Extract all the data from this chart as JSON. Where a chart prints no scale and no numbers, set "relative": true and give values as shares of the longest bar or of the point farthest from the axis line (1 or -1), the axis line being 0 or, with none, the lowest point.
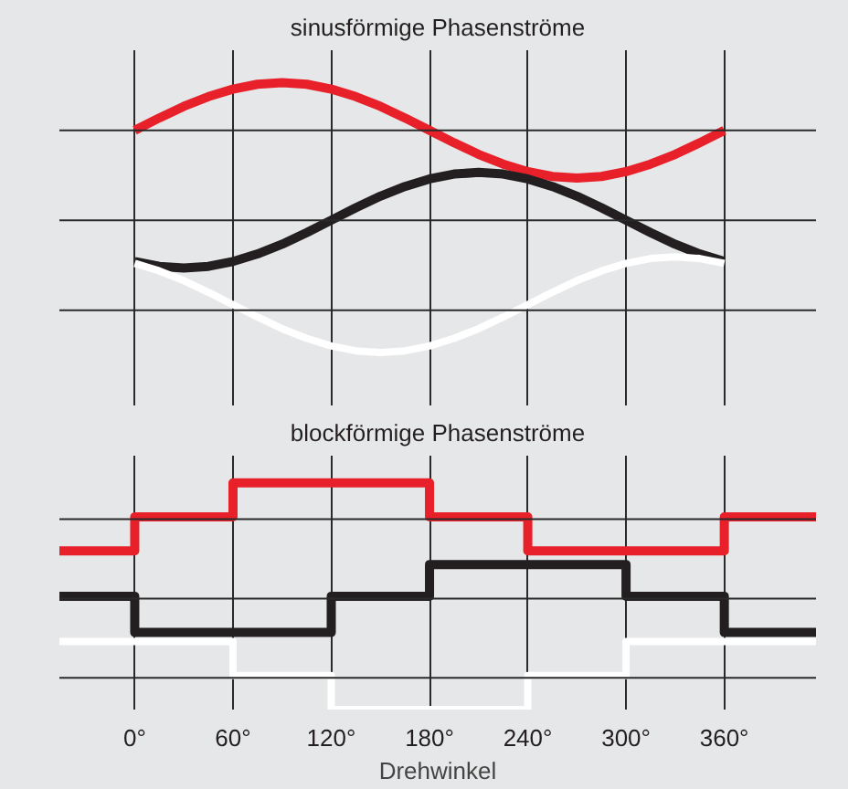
{
  "chart_data": [
    {
      "type": "line",
      "title": "sinusförmige Phasenströme",
      "relative": true,
      "x": [
        0,
        15,
        30,
        45,
        60,
        75,
        90,
        105,
        120,
        135,
        150,
        165,
        180,
        195,
        210,
        225,
        240,
        255,
        270,
        285,
        300,
        315,
        330,
        345,
        360
      ],
      "series": [
        {
          "color": "#e8202a",
          "values": [
            0.823,
            0.869,
            0.912,
            0.948,
            0.976,
            0.994,
            1.0,
            0.994,
            0.976,
            0.948,
            0.912,
            0.869,
            0.823,
            0.777,
            0.734,
            0.698,
            0.67,
            0.652,
            0.646,
            0.652,
            0.67,
            0.698,
            0.734,
            0.777,
            0.823
          ]
        },
        {
          "color": "#231f20",
          "values": [
            0.337,
            0.319,
            0.313,
            0.319,
            0.337,
            0.365,
            0.401,
            0.444,
            0.49,
            0.536,
            0.579,
            0.615,
            0.643,
            0.661,
            0.667,
            0.661,
            0.643,
            0.615,
            0.579,
            0.536,
            0.49,
            0.444,
            0.401,
            0.365,
            0.337
          ]
        },
        {
          "color": "#ffffff",
          "values": [
            0.33,
            0.302,
            0.266,
            0.223,
            0.177,
            0.131,
            0.088,
            0.052,
            0.024,
            0.006,
            0,
            0.006,
            0.024,
            0.052,
            0.088,
            0.131,
            0.177,
            0.223,
            0.266,
            0.302,
            0.33,
            0.348,
            0.354,
            0.348,
            0.33
          ]
        }
      ],
      "xlim": [
        -46,
        416
      ],
      "xticks": [
        {
          "value": 0,
          "label": null
        },
        {
          "value": 60,
          "label": null
        },
        {
          "value": 120,
          "label": null
        },
        {
          "value": 180,
          "label": null
        },
        {
          "value": 240,
          "label": null
        },
        {
          "value": 300,
          "label": null
        },
        {
          "value": 360,
          "label": null
        }
      ],
      "tick_labels": false,
      "grid": "x",
      "ref_lines": [
        {
          "axis": "y",
          "value": 0.823,
          "color": "#2a2a2a"
        },
        {
          "axis": "y",
          "value": 0.49,
          "color": "#2a2a2a"
        },
        {
          "axis": "y",
          "value": 0.156,
          "color": "#2a2a2a"
        }
      ]
    },
    {
      "type": "step",
      "title": "blockförmige Phasenströme",
      "xlabel": "Drehwinkel",
      "relative": true,
      "series": [
        {
          "color": "#e8202a",
          "x": [
            -46,
            0,
            60,
            180,
            240,
            360,
            416
          ],
          "values": [
            0.7,
            0.85,
            1.0,
            0.85,
            0.7,
            0.85,
            0.85
          ]
        },
        {
          "color": "#231f20",
          "x": [
            -46,
            0,
            120,
            180,
            300,
            360,
            416
          ],
          "values": [
            0.5,
            0.34,
            0.5,
            0.64,
            0.5,
            0.34,
            0.34
          ]
        },
        {
          "color": "#ffffff",
          "x": [
            -46,
            60,
            120,
            240,
            300,
            416
          ],
          "values": [
            0.3,
            0.15,
            0,
            0.15,
            0.3,
            0.3
          ]
        }
      ],
      "xlim": [
        -46,
        416
      ],
      "xticks": [
        {
          "value": 0,
          "label": "0°"
        },
        {
          "value": 60,
          "label": "60°"
        },
        {
          "value": 120,
          "label": "120°"
        },
        {
          "value": 180,
          "label": "180°"
        },
        {
          "value": 240,
          "label": "240°"
        },
        {
          "value": 300,
          "label": "300°"
        },
        {
          "value": 360,
          "label": "360°"
        }
      ],
      "tick_labels": "x",
      "grid": "x",
      "ref_lines": [
        {
          "axis": "y",
          "value": 0.84,
          "color": "#2a2a2a"
        },
        {
          "axis": "y",
          "value": 0.49,
          "color": "#2a2a2a"
        },
        {
          "axis": "y",
          "value": 0.14,
          "color": "#2a2a2a"
        }
      ]
    }
  ]
}
